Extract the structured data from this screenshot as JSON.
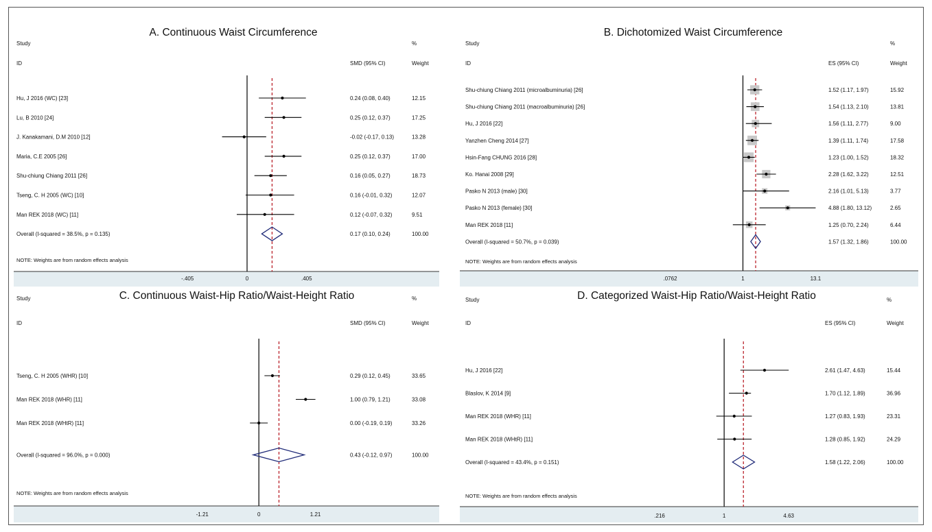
{
  "colors": {
    "axis_band": "#e4edf1",
    "ref_line": "#b5121b",
    "diamond": "#1f2a78",
    "weight_box": "#c8c8c8",
    "line": "#000000"
  },
  "chart_data": [
    {
      "type": "forest",
      "title": "A. Continuous Waist Circumference",
      "header_study": "Study",
      "header_id": "ID",
      "header_effect": "SMD (95% CI)",
      "header_pct": "%",
      "header_weight": "Weight",
      "scale": "linear",
      "xticks": [
        "-.405",
        "0",
        ".405"
      ],
      "xtick_values": [
        -0.405,
        0,
        0.405
      ],
      "xlim": [
        -0.56,
        0.7
      ],
      "null_value": 0,
      "pooled": 0.17,
      "show_boxes": false,
      "studies": [
        {
          "label": "Hu, J 2016 (WC) [23]",
          "es": 0.24,
          "lo": 0.08,
          "hi": 0.4,
          "ci_text": "0.24 (0.08, 0.40)",
          "weight": "12.15"
        },
        {
          "label": "Lu, B 2010 [24]",
          "es": 0.25,
          "lo": 0.12,
          "hi": 0.37,
          "ci_text": "0.25 (0.12, 0.37)",
          "weight": "17.25"
        },
        {
          "label": "J. Kanakamani, D.M 2010 [12]",
          "es": -0.02,
          "lo": -0.17,
          "hi": 0.13,
          "ci_text": "-0.02 (-0.17, 0.13)",
          "weight": "13.28"
        },
        {
          "label": "Maria, C.E 2005 [26]",
          "es": 0.25,
          "lo": 0.12,
          "hi": 0.37,
          "ci_text": "0.25 (0.12, 0.37)",
          "weight": "17.00"
        },
        {
          "label": "Shu-chiung Chiang 2011 [26]",
          "es": 0.16,
          "lo": 0.05,
          "hi": 0.27,
          "ci_text": "0.16 (0.05, 0.27)",
          "weight": "18.73"
        },
        {
          "label": "Tseng, C. H 2005 (WC) [10]",
          "es": 0.16,
          "lo": -0.01,
          "hi": 0.32,
          "ci_text": "0.16 (-0.01, 0.32)",
          "weight": "12.07"
        },
        {
          "label": "Man REK 2018 (WC) [11]",
          "es": 0.12,
          "lo": -0.07,
          "hi": 0.32,
          "ci_text": "0.12 (-0.07, 0.32)",
          "weight": "9.51"
        }
      ],
      "overall": {
        "label": "Overall  (I-squared = 38.5%, p = 0.135)",
        "es": 0.17,
        "lo": 0.1,
        "hi": 0.24,
        "ci_text": "0.17 (0.10, 0.24)",
        "weight": "100.00"
      },
      "note": "NOTE: Weights are from random effects analysis"
    },
    {
      "type": "forest",
      "title": "B. Dichotomized Waist Circumference",
      "header_study": "Study",
      "header_id": "ID",
      "header_effect": "ES (95% CI)",
      "header_pct": "%",
      "header_weight": "Weight",
      "scale": "log",
      "xticks": [
        ".0762",
        "1",
        "13.1"
      ],
      "xtick_values": [
        0.0762,
        1,
        13.1
      ],
      "xlim": [
        0.04,
        25
      ],
      "null_value": 1,
      "pooled": 1.57,
      "show_boxes": true,
      "studies": [
        {
          "label": "Shu-chiung Chiang 2011 (microalbuminuria) [26]",
          "es": 1.52,
          "lo": 1.17,
          "hi": 1.97,
          "ci_text": "1.52 (1.17, 1.97)",
          "weight": "15.92"
        },
        {
          "label": "Shu-chiung Chiang 2011 (macroalbuminuria) [26]",
          "es": 1.54,
          "lo": 1.13,
          "hi": 2.1,
          "ci_text": "1.54 (1.13, 2.10)",
          "weight": "13.81"
        },
        {
          "label": "Hu, J 2016 [22]",
          "es": 1.56,
          "lo": 1.11,
          "hi": 2.77,
          "ci_text": "1.56 (1.11, 2.77)",
          "weight": "9.00"
        },
        {
          "label": "Yanzhen Cheng 2014 [27]",
          "es": 1.39,
          "lo": 1.11,
          "hi": 1.74,
          "ci_text": "1.39 (1.11, 1.74)",
          "weight": "17.58"
        },
        {
          "label": "Hsin-Fang CHUNG 2016 [28]",
          "es": 1.23,
          "lo": 1.0,
          "hi": 1.52,
          "ci_text": "1.23 (1.00, 1.52)",
          "weight": "18.32"
        },
        {
          "label": "Ko. Hanai 2008 [29]",
          "es": 2.28,
          "lo": 1.62,
          "hi": 3.22,
          "ci_text": "2.28 (1.62, 3.22)",
          "weight": "12.51"
        },
        {
          "label": "Pasko N 2013 (male) [30]",
          "es": 2.16,
          "lo": 1.01,
          "hi": 5.13,
          "ci_text": "2.16 (1.01, 5.13)",
          "weight": "3.77"
        },
        {
          "label": "Pasko N 2013 (female) [30]",
          "es": 4.88,
          "lo": 1.8,
          "hi": 13.12,
          "ci_text": "4.88 (1.80, 13.12)",
          "weight": "2.65"
        },
        {
          "label": "Man REK 2018 [11]",
          "es": 1.25,
          "lo": 0.7,
          "hi": 2.24,
          "ci_text": "1.25 (0.70, 2.24)",
          "weight": "6.44"
        }
      ],
      "overall": {
        "label": "Overall  (I-squared = 50.7%, p = 0.039)",
        "es": 1.57,
        "lo": 1.32,
        "hi": 1.86,
        "ci_text": "1.57 (1.32, 1.86)",
        "weight": "100.00"
      },
      "note": "NOTE: Weights are from random effects analysis"
    },
    {
      "type": "forest",
      "title": "C. Continuous Waist-Hip Ratio/Waist-Height Ratio",
      "header_study": "Study",
      "header_id": "ID",
      "header_effect": "SMD (95% CI)",
      "header_pct": "%",
      "header_weight": "Weight",
      "scale": "linear",
      "xticks": [
        "-1.21",
        "0",
        "1.21"
      ],
      "xtick_values": [
        -1.21,
        0,
        1.21
      ],
      "xlim": [
        -1.5,
        1.95
      ],
      "null_value": 0,
      "pooled": 0.43,
      "show_boxes": false,
      "studies": [
        {
          "label": "Tseng, C. H 2005 (WHR) [10]",
          "es": 0.29,
          "lo": 0.12,
          "hi": 0.45,
          "ci_text": "0.29 (0.12, 0.45)",
          "weight": "33.65"
        },
        {
          "label": "Man REK 2018 (WHR) [11]",
          "es": 1.0,
          "lo": 0.79,
          "hi": 1.21,
          "ci_text": "1.00 (0.79, 1.21)",
          "weight": "33.08"
        },
        {
          "label": "Man REK 2018 (WHtR) [11]",
          "es": 0.0,
          "lo": -0.19,
          "hi": 0.19,
          "ci_text": "0.00 (-0.19, 0.19)",
          "weight": "33.26"
        }
      ],
      "overall": {
        "label": "Overall  (I-squared = 96.0%, p = 0.000)",
        "es": 0.43,
        "lo": -0.12,
        "hi": 0.97,
        "ci_text": "0.43 (-0.12, 0.97)",
        "weight": "100.00"
      },
      "note": "NOTE: Weights are from random effects analysis"
    },
    {
      "type": "forest",
      "title": "D. Categorized Waist-Hip Ratio/Waist-Height Ratio",
      "header_study": "Study",
      "header_id": "ID",
      "header_effect": "ES (95% CI)",
      "header_pct": "%",
      "header_weight": "Weight",
      "scale": "log",
      "xticks": [
        ".216",
        "1",
        "4.63"
      ],
      "xtick_values": [
        0.216,
        1,
        4.63
      ],
      "xlim": [
        0.12,
        9
      ],
      "null_value": 1,
      "pooled": 1.58,
      "show_boxes": false,
      "studies": [
        {
          "label": "Hu, J 2016 [22]",
          "es": 2.61,
          "lo": 1.47,
          "hi": 4.63,
          "ci_text": "2.61 (1.47, 4.63)",
          "weight": "15.44"
        },
        {
          "label": "Blaslov, K 2014 [9]",
          "es": 1.7,
          "lo": 1.12,
          "hi": 1.89,
          "ci_text": "1.70 (1.12, 1.89)",
          "weight": "36.96"
        },
        {
          "label": "Man REK 2018 (WHR) [11]",
          "es": 1.27,
          "lo": 0.83,
          "hi": 1.93,
          "ci_text": "1.27 (0.83, 1.93)",
          "weight": "23.31"
        },
        {
          "label": "Man REK 2018 (WHtR) [11]",
          "es": 1.28,
          "lo": 0.85,
          "hi": 1.92,
          "ci_text": "1.28 (0.85, 1.92)",
          "weight": "24.29"
        }
      ],
      "overall": {
        "label": "Overall  (I-squared = 43.4%, p = 0.151)",
        "es": 1.58,
        "lo": 1.22,
        "hi": 2.06,
        "ci_text": "1.58 (1.22, 2.06)",
        "weight": "100.00"
      },
      "note": "NOTE: Weights are from random effects analysis"
    }
  ]
}
